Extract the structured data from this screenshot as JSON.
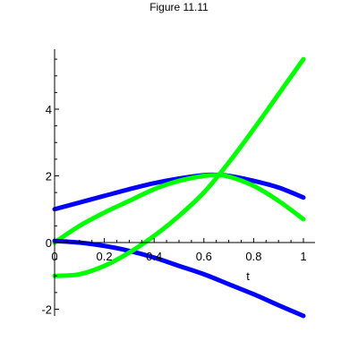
{
  "figure_title": "Figure 11.11",
  "chart_data": {
    "type": "line",
    "title": "Figure 11.11",
    "xlabel": "t",
    "ylabel": "",
    "xlim": [
      0,
      1
    ],
    "ylim": [
      -2.2,
      5.8
    ],
    "xticks": [
      0,
      0.2,
      0.4,
      0.6,
      0.8,
      1
    ],
    "xtick_labels": [
      "0",
      "0.2",
      "0.4",
      "0.6",
      "0.8",
      "1"
    ],
    "yticks": [
      -2,
      0,
      2,
      4
    ],
    "ytick_labels": [
      "-2",
      "0",
      "2",
      "4"
    ],
    "grid": false,
    "legend": "none",
    "series": [
      {
        "color": "#0000ff",
        "x": [
          0,
          0.1,
          0.2,
          0.3,
          0.4,
          0.5,
          0.6,
          0.65,
          0.7,
          0.8,
          0.9,
          1.0
        ],
        "y": [
          1.0,
          1.2,
          1.4,
          1.6,
          1.78,
          1.92,
          2.02,
          2.03,
          2.0,
          1.85,
          1.65,
          1.35
        ]
      },
      {
        "color": "#00ff00",
        "x": [
          0,
          0.1,
          0.2,
          0.3,
          0.4,
          0.5,
          0.6,
          0.65,
          0.7,
          0.8,
          0.9,
          1.0
        ],
        "y": [
          0,
          0.5,
          0.9,
          1.25,
          1.6,
          1.85,
          2.0,
          2.02,
          1.98,
          1.7,
          1.25,
          0.7
        ]
      },
      {
        "color": "#0000ff",
        "x": [
          0,
          0.1,
          0.2,
          0.3,
          0.4,
          0.5,
          0.6,
          0.7,
          0.8,
          0.9,
          1.0
        ],
        "y": [
          0.05,
          0.0,
          -0.1,
          -0.25,
          -0.45,
          -0.7,
          -0.95,
          -1.25,
          -1.55,
          -1.88,
          -2.2
        ]
      },
      {
        "color": "#00ff00",
        "x": [
          0,
          0.1,
          0.2,
          0.3,
          0.4,
          0.5,
          0.6,
          0.7,
          0.8,
          0.9,
          1.0
        ],
        "y": [
          -1.0,
          -0.95,
          -0.7,
          -0.3,
          0.2,
          0.8,
          1.5,
          2.4,
          3.4,
          4.45,
          5.5
        ]
      }
    ]
  }
}
